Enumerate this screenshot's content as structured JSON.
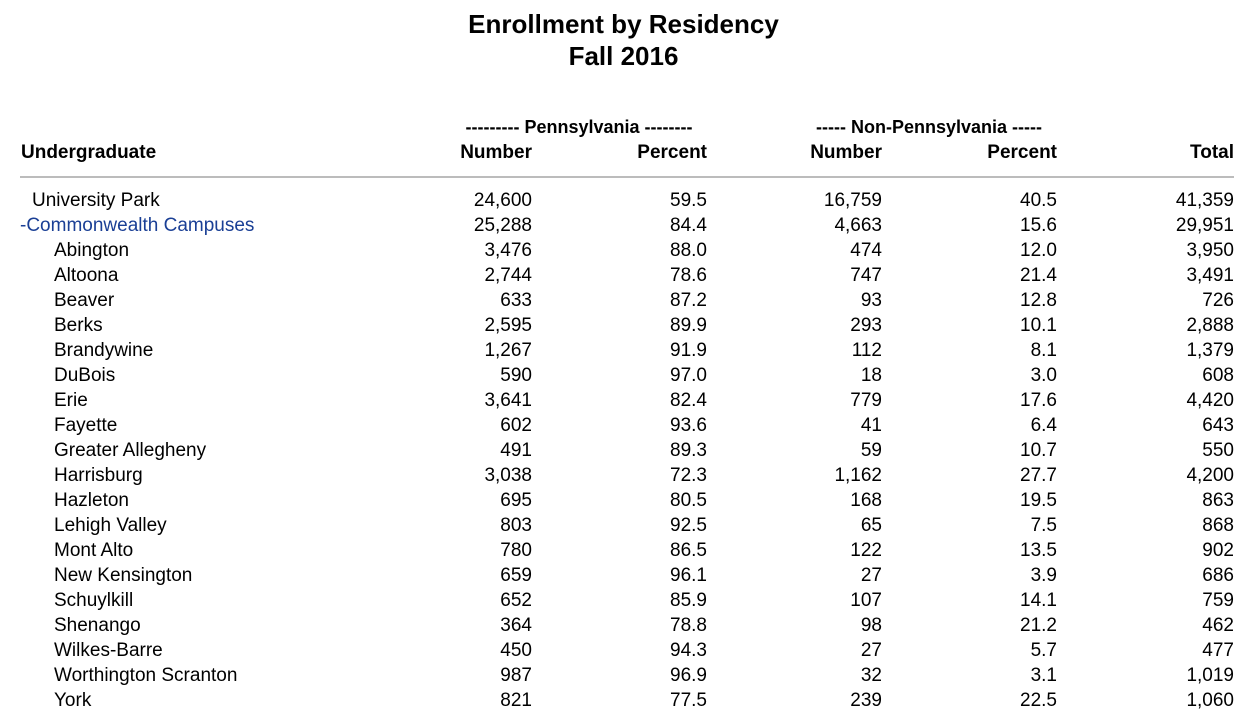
{
  "title": "Enrollment by Residency",
  "subtitle": "Fall 2016",
  "header": {
    "group_pa": "--------- Pennsylvania --------",
    "group_non_pa": "----- Non-Pennsylvania -----",
    "col_label": "Undergraduate",
    "pa_number": "Number",
    "pa_percent": "Percent",
    "npa_number": "Number",
    "npa_percent": "Percent",
    "total": "Total"
  },
  "rows": [
    {
      "name": "University Park",
      "pa_number": "24,600",
      "pa_percent": "59.5",
      "npa_number": "16,759",
      "npa_percent": "40.5",
      "total": "41,359"
    },
    {
      "name": "-Commonwealth Campuses",
      "pa_number": "25,288",
      "pa_percent": "84.4",
      "npa_number": "4,663",
      "npa_percent": "15.6",
      "total": "29,951"
    },
    {
      "name": "Abington",
      "pa_number": "3,476",
      "pa_percent": "88.0",
      "npa_number": "474",
      "npa_percent": "12.0",
      "total": "3,950"
    },
    {
      "name": "Altoona",
      "pa_number": "2,744",
      "pa_percent": "78.6",
      "npa_number": "747",
      "npa_percent": "21.4",
      "total": "3,491"
    },
    {
      "name": "Beaver",
      "pa_number": "633",
      "pa_percent": "87.2",
      "npa_number": "93",
      "npa_percent": "12.8",
      "total": "726"
    },
    {
      "name": "Berks",
      "pa_number": "2,595",
      "pa_percent": "89.9",
      "npa_number": "293",
      "npa_percent": "10.1",
      "total": "2,888"
    },
    {
      "name": "Brandywine",
      "pa_number": "1,267",
      "pa_percent": "91.9",
      "npa_number": "112",
      "npa_percent": "8.1",
      "total": "1,379"
    },
    {
      "name": "DuBois",
      "pa_number": "590",
      "pa_percent": "97.0",
      "npa_number": "18",
      "npa_percent": "3.0",
      "total": "608"
    },
    {
      "name": "Erie",
      "pa_number": "3,641",
      "pa_percent": "82.4",
      "npa_number": "779",
      "npa_percent": "17.6",
      "total": "4,420"
    },
    {
      "name": "Fayette",
      "pa_number": "602",
      "pa_percent": "93.6",
      "npa_number": "41",
      "npa_percent": "6.4",
      "total": "643"
    },
    {
      "name": "Greater Allegheny",
      "pa_number": "491",
      "pa_percent": "89.3",
      "npa_number": "59",
      "npa_percent": "10.7",
      "total": "550"
    },
    {
      "name": "Harrisburg",
      "pa_number": "3,038",
      "pa_percent": "72.3",
      "npa_number": "1,162",
      "npa_percent": "27.7",
      "total": "4,200"
    },
    {
      "name": "Hazleton",
      "pa_number": "695",
      "pa_percent": "80.5",
      "npa_number": "168",
      "npa_percent": "19.5",
      "total": "863"
    },
    {
      "name": "Lehigh Valley",
      "pa_number": "803",
      "pa_percent": "92.5",
      "npa_number": "65",
      "npa_percent": "7.5",
      "total": "868"
    },
    {
      "name": "Mont Alto",
      "pa_number": "780",
      "pa_percent": "86.5",
      "npa_number": "122",
      "npa_percent": "13.5",
      "total": "902"
    },
    {
      "name": "New Kensington",
      "pa_number": "659",
      "pa_percent": "96.1",
      "npa_number": "27",
      "npa_percent": "3.9",
      "total": "686"
    },
    {
      "name": "Schuylkill",
      "pa_number": "652",
      "pa_percent": "85.9",
      "npa_number": "107",
      "npa_percent": "14.1",
      "total": "759"
    },
    {
      "name": "Shenango",
      "pa_number": "364",
      "pa_percent": "78.8",
      "npa_number": "98",
      "npa_percent": "21.2",
      "total": "462"
    },
    {
      "name": "Wilkes-Barre",
      "pa_number": "450",
      "pa_percent": "94.3",
      "npa_number": "27",
      "npa_percent": "5.7",
      "total": "477"
    },
    {
      "name": "Worthington Scranton",
      "pa_number": "987",
      "pa_percent": "96.9",
      "npa_number": "32",
      "npa_percent": "3.1",
      "total": "1,019"
    },
    {
      "name": "York",
      "pa_number": "821",
      "pa_percent": "77.5",
      "npa_number": "239",
      "npa_percent": "22.5",
      "total": "1,060"
    }
  ],
  "colors": {
    "link": "#1a3f95",
    "rule": "#bcbcbc"
  }
}
